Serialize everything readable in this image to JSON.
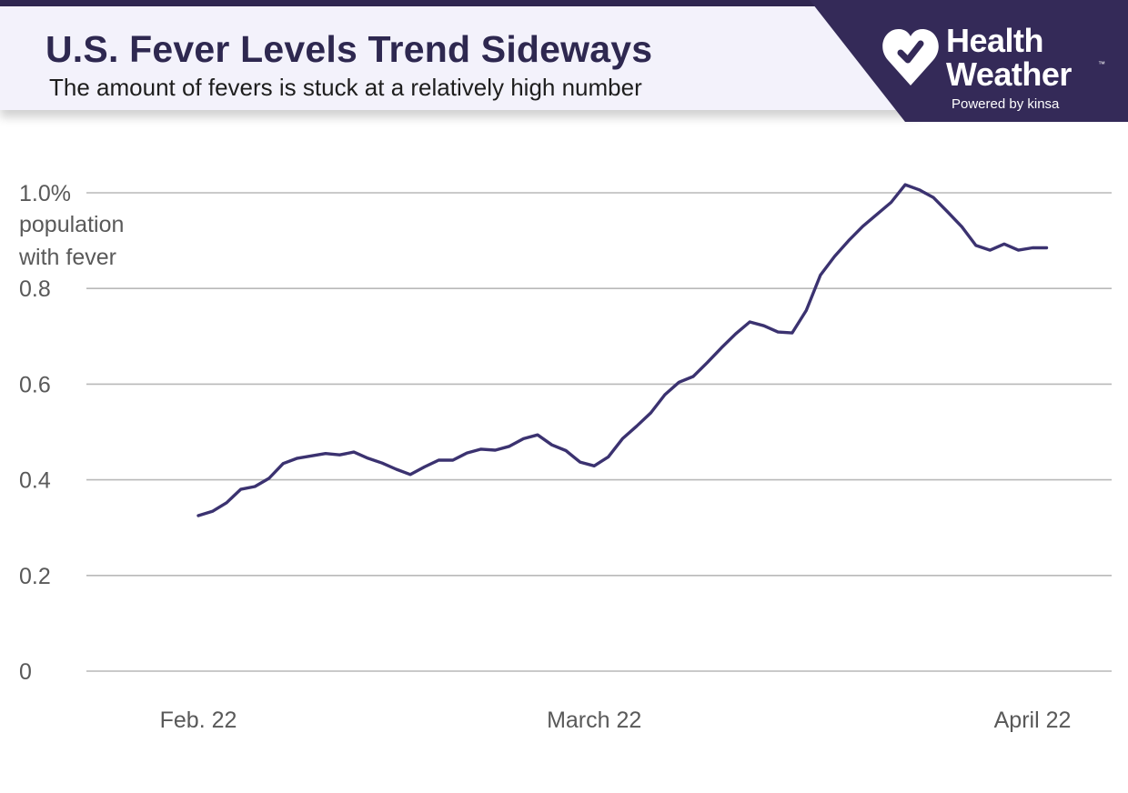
{
  "header": {
    "title": "U.S. Fever Levels Trend Sideways",
    "subtitle": "The amount of fevers is stuck at a relatively high number"
  },
  "brand": {
    "name": "Health\nWeather",
    "trademark": "™",
    "tagline": "Powered by kinsa",
    "logo_icon": "heart-check-icon",
    "panel_color": "#342a58"
  },
  "colors": {
    "line": "#3b3270",
    "grid": "#b9b9b9",
    "tick_text": "#595959",
    "title": "#2e2850"
  },
  "chart_data": {
    "type": "line",
    "title": "U.S. Fever Levels Trend Sideways",
    "ylabel": "population with fever",
    "ylabel_lines": [
      "population",
      "with fever"
    ],
    "ylim": [
      0,
      1.0
    ],
    "yticks": [
      0,
      0.2,
      0.4,
      0.6,
      0.8,
      1.0
    ],
    "ytick_labels": [
      "0",
      "0.2",
      "0.4",
      "0.6",
      "0.8",
      "1.0%"
    ],
    "xticks": [
      {
        "label": "Feb. 22",
        "date": "2022-02-22"
      },
      {
        "label": "March 22",
        "date": "2022-03-22"
      },
      {
        "label": "April 22",
        "date": "2022-04-22"
      }
    ],
    "grid": true,
    "series": [
      {
        "x": [
          "2022-02-22",
          "2022-02-23",
          "2022-02-24",
          "2022-02-25",
          "2022-02-26",
          "2022-02-27",
          "2022-02-28",
          "2022-03-01",
          "2022-03-02",
          "2022-03-03",
          "2022-03-04",
          "2022-03-05",
          "2022-03-06",
          "2022-03-07",
          "2022-03-08",
          "2022-03-09",
          "2022-03-10",
          "2022-03-11",
          "2022-03-12",
          "2022-03-13",
          "2022-03-14",
          "2022-03-15",
          "2022-03-16",
          "2022-03-17",
          "2022-03-18",
          "2022-03-19",
          "2022-03-20",
          "2022-03-21",
          "2022-03-22",
          "2022-03-23",
          "2022-03-24",
          "2022-03-25",
          "2022-03-26",
          "2022-03-27",
          "2022-03-28",
          "2022-03-29",
          "2022-03-30",
          "2022-03-31",
          "2022-04-01",
          "2022-04-02",
          "2022-04-03",
          "2022-04-04",
          "2022-04-05",
          "2022-04-06",
          "2022-04-07",
          "2022-04-08",
          "2022-04-09",
          "2022-04-10",
          "2022-04-11",
          "2022-04-12",
          "2022-04-13",
          "2022-04-14",
          "2022-04-15",
          "2022-04-16",
          "2022-04-17",
          "2022-04-18",
          "2022-04-19",
          "2022-04-20",
          "2022-04-21",
          "2022-04-22",
          "2022-04-23"
        ],
        "values": [
          0.325,
          0.334,
          0.352,
          0.38,
          0.386,
          0.403,
          0.434,
          0.445,
          0.45,
          0.455,
          0.452,
          0.458,
          0.445,
          0.435,
          0.422,
          0.411,
          0.427,
          0.441,
          0.441,
          0.456,
          0.464,
          0.462,
          0.47,
          0.486,
          0.494,
          0.473,
          0.461,
          0.437,
          0.429,
          0.448,
          0.486,
          0.512,
          0.54,
          0.578,
          0.604,
          0.616,
          0.645,
          0.676,
          0.705,
          0.73,
          0.722,
          0.709,
          0.707,
          0.754,
          0.828,
          0.867,
          0.9,
          0.93,
          0.955,
          0.98,
          1.017,
          1.006,
          0.99,
          0.96,
          0.929,
          0.89,
          0.88,
          0.893,
          0.88,
          0.885,
          0.885
        ]
      }
    ]
  }
}
